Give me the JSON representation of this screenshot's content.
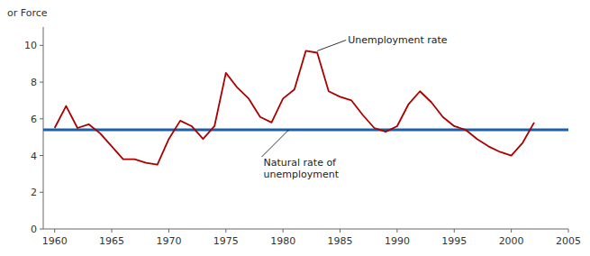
{
  "chart_data": {
    "type": "line",
    "x": [
      1960,
      1961,
      1962,
      1963,
      1964,
      1965,
      1966,
      1967,
      1968,
      1969,
      1970,
      1971,
      1972,
      1973,
      1974,
      1975,
      1976,
      1977,
      1978,
      1979,
      1980,
      1981,
      1982,
      1983,
      1984,
      1985,
      1986,
      1987,
      1988,
      1989,
      1990,
      1991,
      1992,
      1993,
      1994,
      1995,
      1996,
      1997,
      1998,
      1999,
      2000,
      2001,
      2002
    ],
    "values": [
      5.5,
      6.7,
      5.5,
      5.7,
      5.2,
      4.5,
      3.8,
      3.8,
      3.6,
      3.5,
      4.9,
      5.9,
      5.6,
      4.9,
      5.6,
      8.5,
      7.7,
      7.1,
      6.1,
      5.8,
      7.1,
      7.6,
      9.7,
      9.6,
      7.5,
      7.2,
      7.0,
      6.2,
      5.5,
      5.3,
      5.6,
      6.8,
      7.5,
      6.9,
      6.1,
      5.6,
      5.4,
      4.9,
      4.5,
      4.2,
      4.0,
      4.7,
      5.8
    ],
    "color": "#aa0000",
    "reference_line": {
      "y": 5.4,
      "color": "#1a5fa8"
    },
    "annotations": [
      {
        "text": "Unemployment rate",
        "x": 1983.0,
        "y": 9.7
      },
      {
        "text": "Natural rate of\nunemployment",
        "x": 1980.5,
        "y": 5.4
      }
    ],
    "y_label": "or Force",
    "xlim": [
      1959,
      2005
    ],
    "ylim": [
      0,
      11
    ],
    "xticks": [
      1960,
      1965,
      1970,
      1975,
      1980,
      1985,
      1990,
      1995,
      2000,
      2005
    ],
    "yticks": [
      0,
      2,
      4,
      6,
      8,
      10
    ],
    "grid": false
  }
}
